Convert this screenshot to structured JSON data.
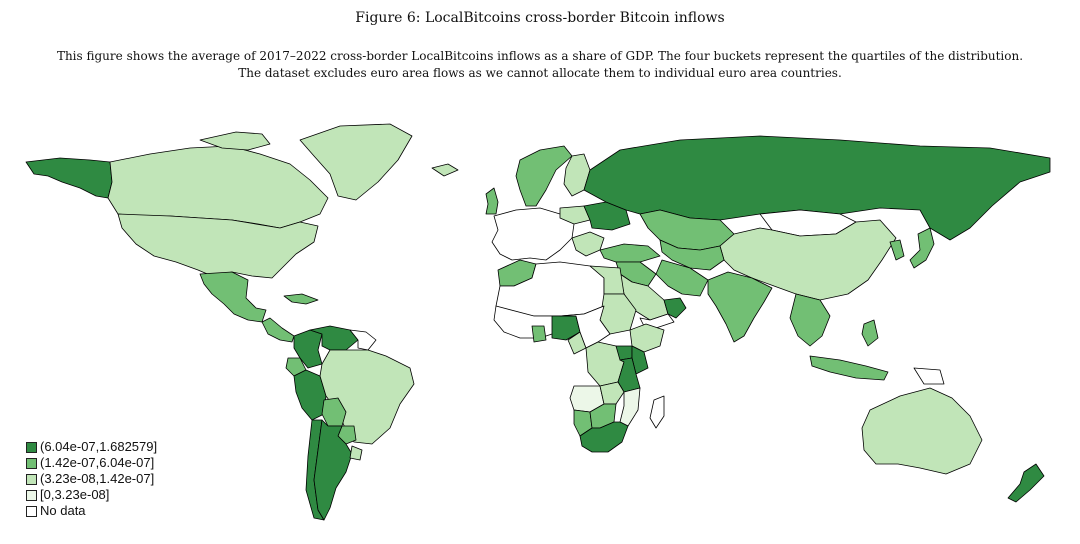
{
  "figure": {
    "title": "Figure 6: LocalBitcoins cross-border Bitcoin inflows",
    "caption_line1": "This figure shows the average of 2017–2022 cross-border LocalBitcoins inflows as a share of GDP. The four buckets represent the quartiles of the distribution.",
    "caption_line2": "The dataset excludes euro area flows as we cannot allocate them to individual euro area countries."
  },
  "colors": {
    "q4": "#2f8a42",
    "q3": "#72bf74",
    "q2": "#c1e5b8",
    "q1": "#ecf7e8",
    "nodata": "#ffffff",
    "border": "#000000"
  },
  "legend": {
    "items": [
      {
        "label": "(6.04e-07,1.682579]",
        "bucket": "q4"
      },
      {
        "label": "(1.42e-07,6.04e-07]",
        "bucket": "q3"
      },
      {
        "label": "(3.23e-08,1.42e-07]",
        "bucket": "q2"
      },
      {
        "label": "[0,3.23e-08]",
        "bucket": "q1"
      },
      {
        "label": "No data",
        "bucket": "nodata"
      }
    ]
  },
  "regions": [
    {
      "name": "alaska",
      "bucket": "q4"
    },
    {
      "name": "canada",
      "bucket": "q2"
    },
    {
      "name": "greenland",
      "bucket": "q2"
    },
    {
      "name": "usa",
      "bucket": "q2"
    },
    {
      "name": "mexico",
      "bucket": "q3"
    },
    {
      "name": "central-america",
      "bucket": "q3"
    },
    {
      "name": "cuba",
      "bucket": "q3"
    },
    {
      "name": "colombia",
      "bucket": "q4"
    },
    {
      "name": "venezuela",
      "bucket": "q4"
    },
    {
      "name": "guianas",
      "bucket": "nodata"
    },
    {
      "name": "peru",
      "bucket": "q4"
    },
    {
      "name": "ecuador",
      "bucket": "q3"
    },
    {
      "name": "brazil",
      "bucket": "q2"
    },
    {
      "name": "bolivia",
      "bucket": "q3"
    },
    {
      "name": "paraguay",
      "bucket": "q3"
    },
    {
      "name": "chile",
      "bucket": "q4"
    },
    {
      "name": "argentina",
      "bucket": "q4"
    },
    {
      "name": "uruguay",
      "bucket": "q2"
    },
    {
      "name": "iceland",
      "bucket": "q2"
    },
    {
      "name": "uk",
      "bucket": "q3"
    },
    {
      "name": "scandinavia",
      "bucket": "q3"
    },
    {
      "name": "finland",
      "bucket": "q2"
    },
    {
      "name": "europe",
      "bucket": "nodata"
    },
    {
      "name": "poland",
      "bucket": "q2"
    },
    {
      "name": "ukraine",
      "bucket": "q4"
    },
    {
      "name": "balkans",
      "bucket": "q2"
    },
    {
      "name": "turkey",
      "bucket": "q3"
    },
    {
      "name": "russia",
      "bucket": "q4"
    },
    {
      "name": "kazakhstan",
      "bucket": "q3"
    },
    {
      "name": "mongolia",
      "bucket": "nodata"
    },
    {
      "name": "china",
      "bucket": "q2"
    },
    {
      "name": "korea",
      "bucket": "q3"
    },
    {
      "name": "japan",
      "bucket": "q3"
    },
    {
      "name": "central-asia",
      "bucket": "q3"
    },
    {
      "name": "iran",
      "bucket": "q3"
    },
    {
      "name": "middle-east",
      "bucket": "q3"
    },
    {
      "name": "saudi-arabia",
      "bucket": "q2"
    },
    {
      "name": "oman",
      "bucket": "q4"
    },
    {
      "name": "yemen",
      "bucket": "nodata"
    },
    {
      "name": "india",
      "bucket": "q3"
    },
    {
      "name": "southeast-asia",
      "bucket": "q3"
    },
    {
      "name": "philippines",
      "bucket": "q3"
    },
    {
      "name": "indonesia",
      "bucket": "q3"
    },
    {
      "name": "png",
      "bucket": "nodata"
    },
    {
      "name": "australia",
      "bucket": "q2"
    },
    {
      "name": "new-zealand",
      "bucket": "q4"
    },
    {
      "name": "morocco",
      "bucket": "q3"
    },
    {
      "name": "sahara",
      "bucket": "nodata"
    },
    {
      "name": "egypt",
      "bucket": "q2"
    },
    {
      "name": "sudan",
      "bucket": "q2"
    },
    {
      "name": "ethiopia",
      "bucket": "q2"
    },
    {
      "name": "west-africa",
      "bucket": "nodata"
    },
    {
      "name": "ghana",
      "bucket": "q3"
    },
    {
      "name": "nigeria",
      "bucket": "q4"
    },
    {
      "name": "cameroon",
      "bucket": "q2"
    },
    {
      "name": "central-africa",
      "bucket": "nodata"
    },
    {
      "name": "drc",
      "bucket": "q2"
    },
    {
      "name": "uganda",
      "bucket": "q4"
    },
    {
      "name": "kenya",
      "bucket": "q4"
    },
    {
      "name": "tanzania",
      "bucket": "q4"
    },
    {
      "name": "angola",
      "bucket": "q1"
    },
    {
      "name": "zambia",
      "bucket": "q2"
    },
    {
      "name": "mozambique",
      "bucket": "q1"
    },
    {
      "name": "namibia",
      "bucket": "q3"
    },
    {
      "name": "botswana",
      "bucket": "q3"
    },
    {
      "name": "south-africa",
      "bucket": "q4"
    },
    {
      "name": "madagascar",
      "bucket": "nodata"
    }
  ]
}
